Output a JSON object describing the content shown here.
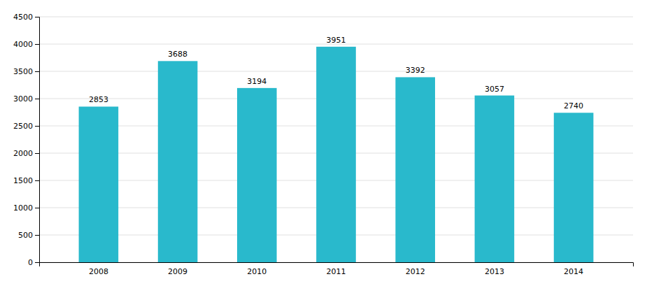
{
  "chart_data": {
    "type": "bar",
    "categories": [
      "2008",
      "2009",
      "2010",
      "2011",
      "2012",
      "2013",
      "2014"
    ],
    "values": [
      2853,
      3688,
      3194,
      3951,
      3392,
      3057,
      2740
    ],
    "color": "#29B9CC",
    "ylim": [
      0,
      4500
    ],
    "yticks": [
      0,
      500,
      1000,
      1500,
      2000,
      2500,
      3000,
      3500,
      4000,
      4500
    ],
    "grid": true,
    "data_labels": true
  }
}
